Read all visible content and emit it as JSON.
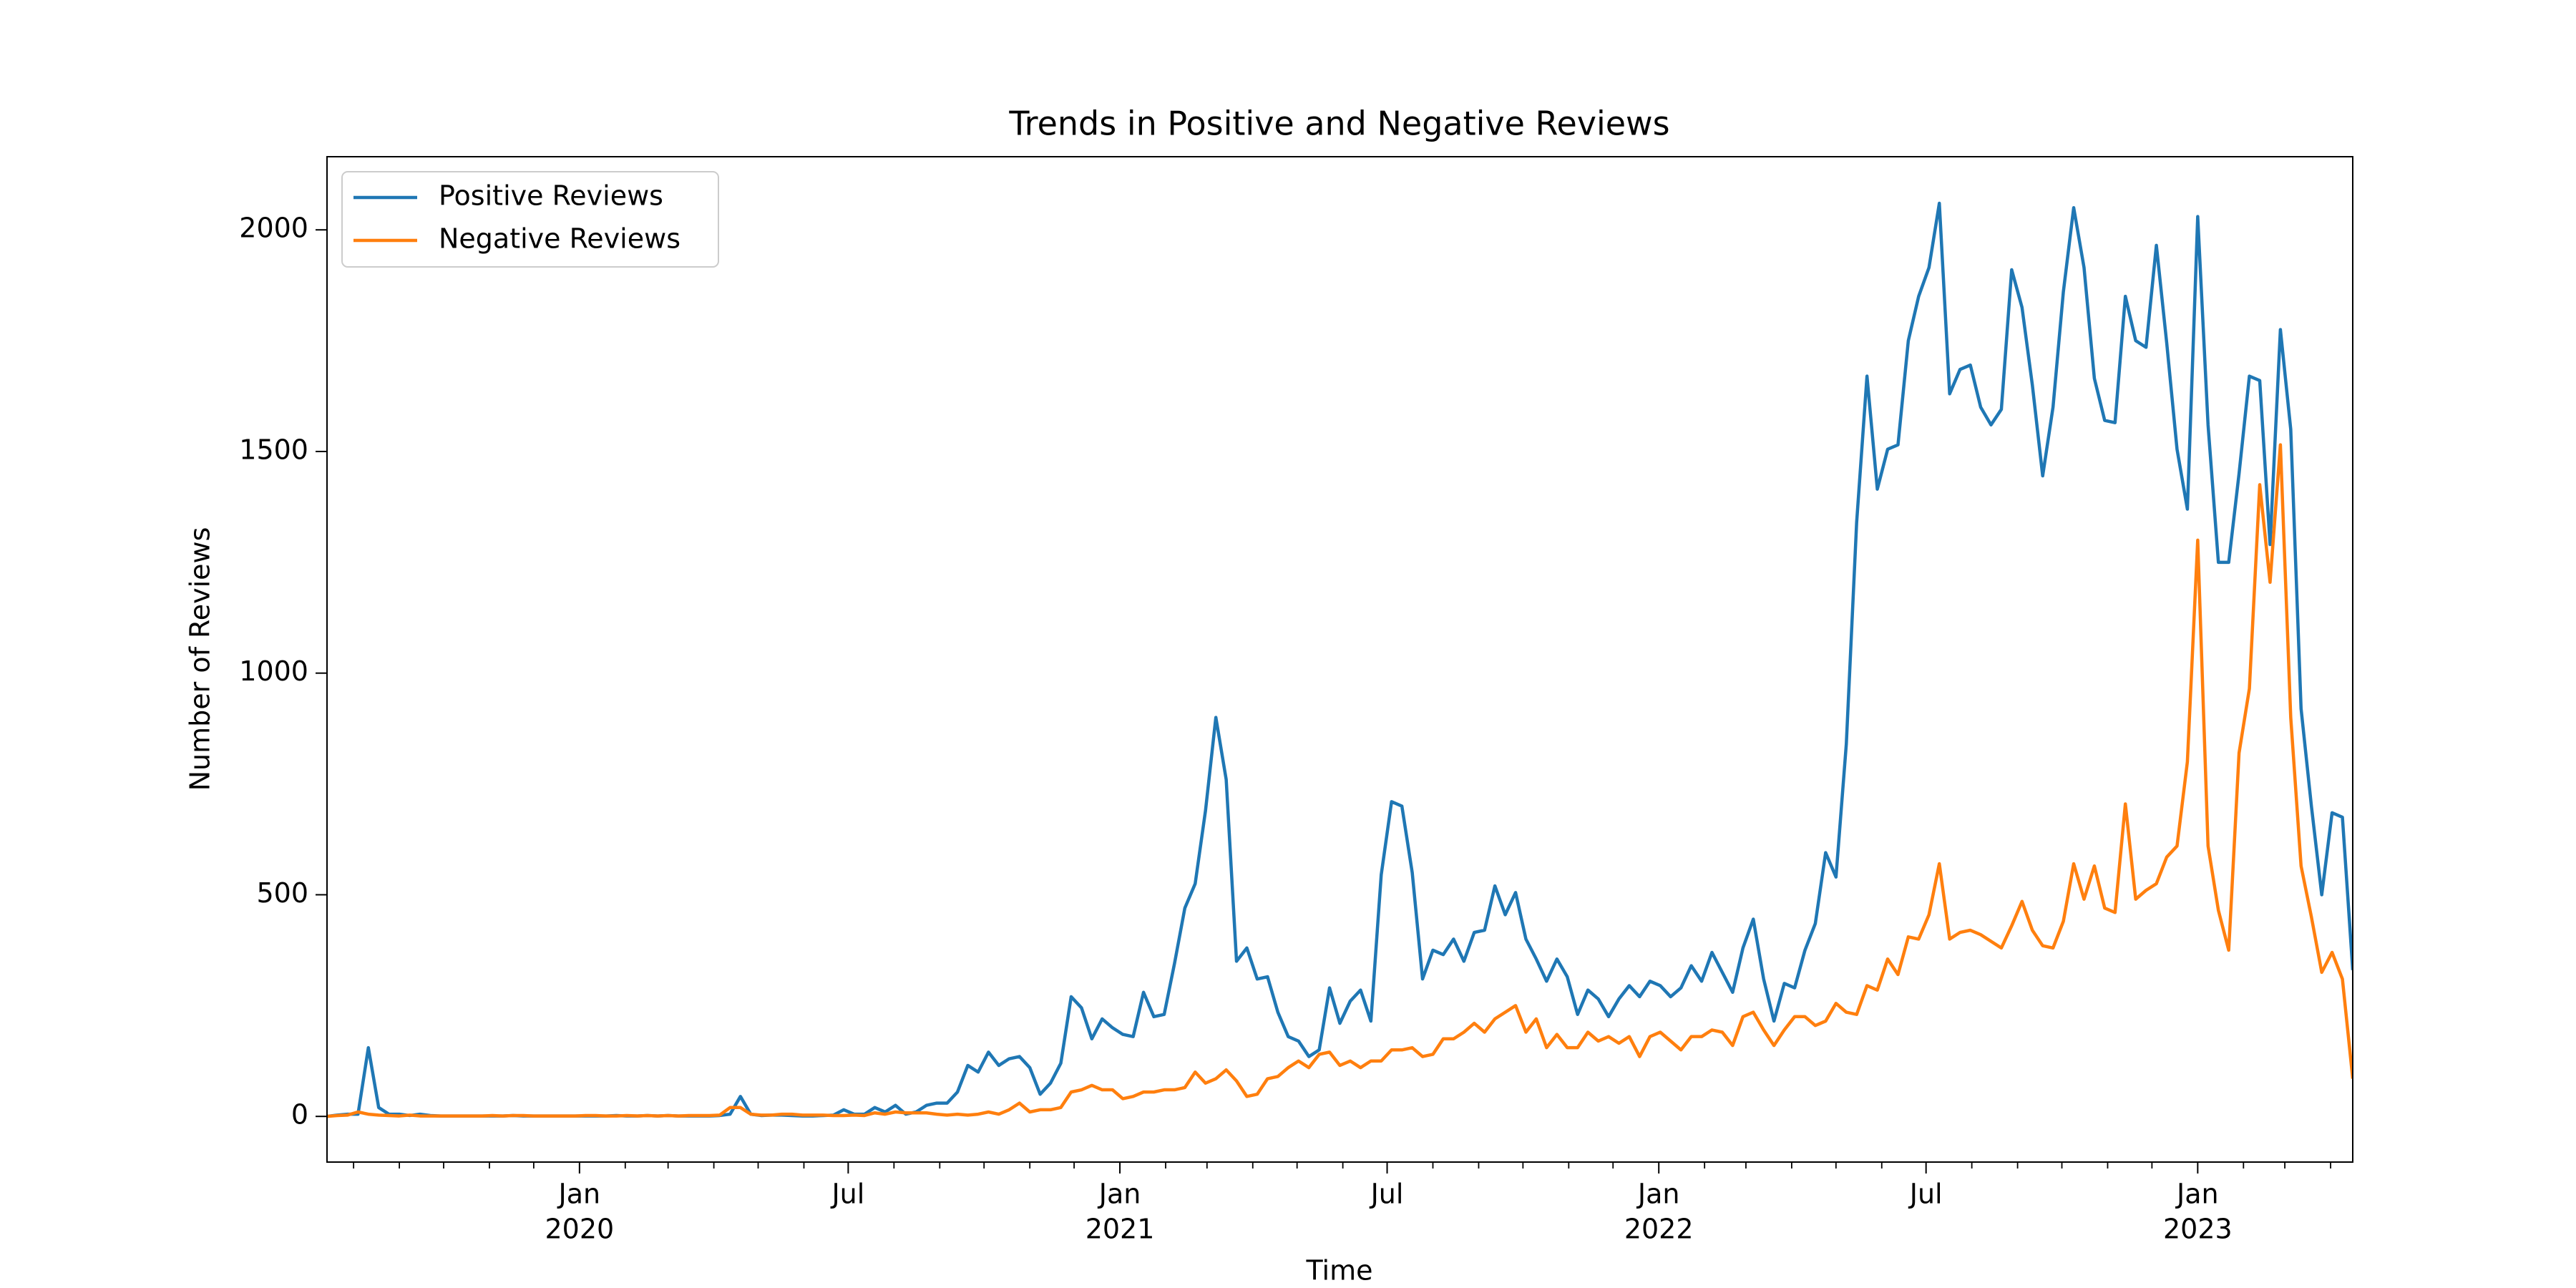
{
  "chart_data": {
    "type": "line",
    "title": "Trends in Positive and Negative Reviews",
    "xlabel": "Time",
    "ylabel": "Number of Reviews",
    "legend": "upper left",
    "grid": false,
    "x": [
      "2019-07-14",
      "2019-07-21",
      "2019-07-28",
      "2019-08-04",
      "2019-08-11",
      "2019-08-18",
      "2019-08-25",
      "2019-09-01",
      "2019-09-08",
      "2019-09-15",
      "2019-09-22",
      "2019-09-29",
      "2019-10-06",
      "2019-10-13",
      "2019-10-20",
      "2019-10-27",
      "2019-11-03",
      "2019-11-10",
      "2019-11-17",
      "2019-11-24",
      "2019-12-01",
      "2019-12-08",
      "2019-12-15",
      "2019-12-22",
      "2019-12-29",
      "2020-01-05",
      "2020-01-12",
      "2020-01-19",
      "2020-01-26",
      "2020-02-02",
      "2020-02-09",
      "2020-02-16",
      "2020-02-23",
      "2020-03-01",
      "2020-03-08",
      "2020-03-15",
      "2020-03-22",
      "2020-03-29",
      "2020-04-05",
      "2020-04-12",
      "2020-04-19",
      "2020-04-26",
      "2020-05-03",
      "2020-05-10",
      "2020-05-17",
      "2020-05-24",
      "2020-05-31",
      "2020-06-07",
      "2020-06-14",
      "2020-06-21",
      "2020-06-28",
      "2020-07-05",
      "2020-07-12",
      "2020-07-19",
      "2020-07-26",
      "2020-08-02",
      "2020-08-09",
      "2020-08-16",
      "2020-08-23",
      "2020-08-30",
      "2020-09-06",
      "2020-09-13",
      "2020-09-20",
      "2020-09-27",
      "2020-10-04",
      "2020-10-11",
      "2020-10-18",
      "2020-10-25",
      "2020-11-01",
      "2020-11-08",
      "2020-11-15",
      "2020-11-22",
      "2020-11-29",
      "2020-12-06",
      "2020-12-13",
      "2020-12-20",
      "2020-12-27",
      "2021-01-03",
      "2021-01-10",
      "2021-01-17",
      "2021-01-24",
      "2021-01-31",
      "2021-02-07",
      "2021-02-14",
      "2021-02-21",
      "2021-02-28",
      "2021-03-07",
      "2021-03-14",
      "2021-03-21",
      "2021-03-28",
      "2021-04-04",
      "2021-04-11",
      "2021-04-18",
      "2021-04-25",
      "2021-05-02",
      "2021-05-09",
      "2021-05-16",
      "2021-05-23",
      "2021-05-30",
      "2021-06-06",
      "2021-06-13",
      "2021-06-20",
      "2021-06-27",
      "2021-07-04",
      "2021-07-11",
      "2021-07-18",
      "2021-07-25",
      "2021-08-01",
      "2021-08-08",
      "2021-08-15",
      "2021-08-22",
      "2021-08-29",
      "2021-09-05",
      "2021-09-12",
      "2021-09-19",
      "2021-09-26",
      "2021-10-03",
      "2021-10-10",
      "2021-10-17",
      "2021-10-24",
      "2021-10-31",
      "2021-11-07",
      "2021-11-14",
      "2021-11-21",
      "2021-11-28",
      "2021-12-05",
      "2021-12-12",
      "2021-12-19",
      "2021-12-26",
      "2022-01-02",
      "2022-01-09",
      "2022-01-16",
      "2022-01-23",
      "2022-01-30",
      "2022-02-06",
      "2022-02-13",
      "2022-02-20",
      "2022-02-27",
      "2022-03-06",
      "2022-03-13",
      "2022-03-20",
      "2022-03-27",
      "2022-04-03",
      "2022-04-10",
      "2022-04-17",
      "2022-04-24",
      "2022-05-01",
      "2022-05-08",
      "2022-05-15",
      "2022-05-22",
      "2022-05-29",
      "2022-06-05",
      "2022-06-12",
      "2022-06-19",
      "2022-06-26",
      "2022-07-03",
      "2022-07-10",
      "2022-07-17",
      "2022-07-24",
      "2022-07-31",
      "2022-08-07",
      "2022-08-14",
      "2022-08-21",
      "2022-08-28",
      "2022-09-04",
      "2022-09-11",
      "2022-09-18",
      "2022-09-25",
      "2022-10-02",
      "2022-10-09",
      "2022-10-16",
      "2022-10-23",
      "2022-10-30",
      "2022-11-06",
      "2022-11-13",
      "2022-11-20",
      "2022-11-27",
      "2022-12-04",
      "2022-12-11",
      "2022-12-18",
      "2022-12-25",
      "2023-01-01",
      "2023-01-08",
      "2023-01-15",
      "2023-01-22",
      "2023-01-29",
      "2023-02-05",
      "2023-02-12",
      "2023-02-19",
      "2023-02-26",
      "2023-03-05",
      "2023-03-12",
      "2023-03-19",
      "2023-03-26",
      "2023-04-02",
      "2023-04-09",
      "2023-04-16"
    ],
    "series": [
      {
        "name": "Positive Reviews",
        "color": "#1f77b4",
        "values": [
          0,
          3,
          5,
          5,
          155,
          20,
          5,
          5,
          2,
          5,
          2,
          1,
          1,
          1,
          1,
          1,
          1,
          1,
          2,
          1,
          1,
          1,
          1,
          1,
          1,
          1,
          1,
          1,
          2,
          1,
          1,
          2,
          1,
          2,
          1,
          1,
          1,
          1,
          2,
          5,
          45,
          5,
          2,
          3,
          3,
          2,
          1,
          1,
          2,
          3,
          15,
          5,
          5,
          20,
          10,
          25,
          5,
          10,
          25,
          30,
          30,
          55,
          115,
          100,
          145,
          115,
          130,
          135,
          110,
          50,
          75,
          120,
          270,
          245,
          175,
          220,
          200,
          185,
          180,
          280,
          225,
          230,
          345,
          470,
          525,
          690,
          900,
          760,
          350,
          380,
          310,
          315,
          235,
          180,
          170,
          135,
          150,
          290,
          210,
          260,
          285,
          215,
          545,
          710,
          700,
          550,
          310,
          375,
          365,
          400,
          350,
          415,
          420,
          520,
          455,
          505,
          400,
          355,
          305,
          355,
          315,
          230,
          285,
          265,
          225,
          265,
          295,
          270,
          305,
          295,
          270,
          290,
          340,
          305,
          370,
          325,
          280,
          380,
          445,
          310,
          215,
          300,
          290,
          375,
          435,
          595,
          540,
          840,
          1340,
          1670,
          1415,
          1505,
          1515,
          1750,
          1850,
          1915,
          2060,
          1630,
          1685,
          1695,
          1600,
          1560,
          1595,
          1910,
          1825,
          1650,
          1445,
          1600,
          1860,
          2050,
          1915,
          1665,
          1570,
          1565,
          1850,
          1750,
          1735,
          1965,
          1745,
          1505,
          1370,
          2030,
          1560,
          1250,
          1250,
          1450,
          1670,
          1660,
          1290,
          1775,
          1550,
          920,
          700,
          500,
          685,
          675,
          330
        ]
      },
      {
        "name": "Negative Reviews",
        "color": "#ff7f0e",
        "values": [
          0,
          2,
          3,
          10,
          5,
          3,
          2,
          1,
          3,
          1,
          1,
          1,
          1,
          1,
          1,
          1,
          2,
          1,
          2,
          2,
          1,
          1,
          1,
          1,
          1,
          2,
          2,
          1,
          1,
          2,
          1,
          2,
          1,
          2,
          1,
          2,
          2,
          2,
          3,
          20,
          20,
          5,
          3,
          3,
          5,
          5,
          3,
          3,
          3,
          2,
          2,
          3,
          2,
          8,
          5,
          10,
          8,
          8,
          8,
          5,
          3,
          5,
          3,
          5,
          10,
          5,
          15,
          30,
          10,
          15,
          15,
          20,
          55,
          60,
          70,
          60,
          60,
          40,
          45,
          55,
          55,
          60,
          60,
          65,
          100,
          75,
          85,
          105,
          80,
          45,
          50,
          85,
          90,
          110,
          125,
          110,
          140,
          145,
          115,
          125,
          110,
          125,
          125,
          150,
          150,
          155,
          135,
          140,
          175,
          175,
          190,
          210,
          190,
          220,
          235,
          250,
          190,
          220,
          155,
          185,
          155,
          155,
          190,
          170,
          180,
          165,
          180,
          135,
          180,
          190,
          170,
          150,
          180,
          180,
          195,
          190,
          160,
          225,
          235,
          195,
          160,
          195,
          225,
          225,
          205,
          215,
          255,
          235,
          230,
          295,
          285,
          355,
          320,
          405,
          400,
          455,
          570,
          400,
          415,
          420,
          410,
          395,
          380,
          430,
          485,
          420,
          385,
          380,
          440,
          570,
          490,
          565,
          470,
          460,
          705,
          490,
          510,
          525,
          585,
          610,
          800,
          1300,
          610,
          465,
          375,
          820,
          965,
          1425,
          1205,
          1515,
          900,
          565,
          450,
          325,
          370,
          310,
          85
        ]
      }
    ],
    "xlim": [
      "2019-07-14",
      "2023-04-16"
    ],
    "xticks": [
      {
        "value": "2020-01-01",
        "label": [
          "Jan",
          "2020"
        ]
      },
      {
        "value": "2020-07-01",
        "label": [
          "Jul"
        ]
      },
      {
        "value": "2021-01-01",
        "label": [
          "Jan",
          "2021"
        ]
      },
      {
        "value": "2021-07-01",
        "label": [
          "Jul"
        ]
      },
      {
        "value": "2022-01-01",
        "label": [
          "Jan",
          "2022"
        ]
      },
      {
        "value": "2022-07-01",
        "label": [
          "Jul"
        ]
      },
      {
        "value": "2023-01-01",
        "label": [
          "Jan",
          "2023"
        ]
      }
    ],
    "xticks_minor": [
      "2019-08-01",
      "2019-09-01",
      "2019-10-01",
      "2019-11-01",
      "2019-12-01",
      "2020-02-01",
      "2020-03-01",
      "2020-04-01",
      "2020-05-01",
      "2020-06-01",
      "2020-08-01",
      "2020-09-01",
      "2020-10-01",
      "2020-11-01",
      "2020-12-01",
      "2021-02-01",
      "2021-03-01",
      "2021-04-01",
      "2021-05-01",
      "2021-06-01",
      "2021-08-01",
      "2021-09-01",
      "2021-10-01",
      "2021-11-01",
      "2021-12-01",
      "2022-02-01",
      "2022-03-01",
      "2022-04-01",
      "2022-05-01",
      "2022-06-01",
      "2022-08-01",
      "2022-09-01",
      "2022-10-01",
      "2022-11-01",
      "2022-12-01",
      "2023-02-01",
      "2023-03-01",
      "2023-04-01"
    ],
    "ylim": [
      -103,
      2165
    ],
    "yticks": [
      0,
      500,
      1000,
      1500,
      2000
    ]
  }
}
